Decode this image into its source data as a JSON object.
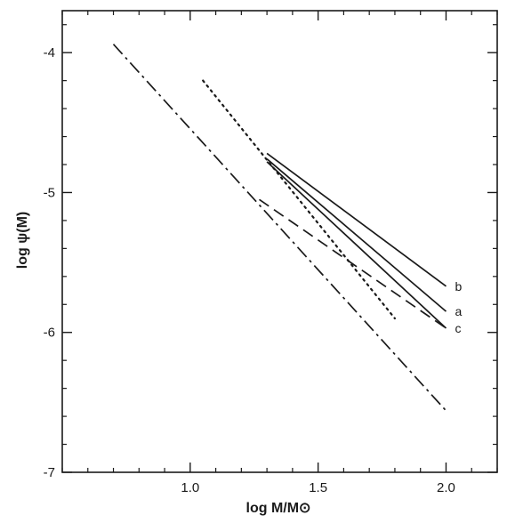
{
  "chart_data": {
    "type": "line",
    "xlabel": "log M/M⊙",
    "ylabel": "log ψ(M)",
    "xlim": [
      0.5,
      2.2
    ],
    "ylim": [
      -7,
      -3.7
    ],
    "xticks": [
      1.0,
      1.5,
      2.0
    ],
    "xtick_labels": [
      "1.0",
      "1.5",
      "2.0"
    ],
    "yticks": [
      -4,
      -5,
      -6,
      -7
    ],
    "ytick_labels": [
      "-4",
      "-5",
      "-6",
      "-7"
    ],
    "x_minor_step": 0.1,
    "y_minor_step": 0.2,
    "grid": false,
    "legend": "none",
    "series": [
      {
        "name": "b",
        "style": "solid",
        "x": [
          1.3,
          2.0
        ],
        "y": [
          -4.72,
          -5.67
        ]
      },
      {
        "name": "a",
        "style": "solid",
        "x": [
          1.3,
          2.0
        ],
        "y": [
          -4.76,
          -5.85
        ]
      },
      {
        "name": "c",
        "style": "solid",
        "x": [
          1.3,
          2.0
        ],
        "y": [
          -4.78,
          -5.97
        ]
      },
      {
        "style": "dashed",
        "x": [
          1.27,
          2.0
        ],
        "y": [
          -5.05,
          -5.97
        ]
      },
      {
        "style": "dotted",
        "x": [
          1.05,
          1.8
        ],
        "y": [
          -4.2,
          -5.9
        ]
      },
      {
        "style": "dash-dot",
        "x": [
          0.7,
          2.0
        ],
        "y": [
          -3.94,
          -6.56
        ]
      }
    ]
  }
}
